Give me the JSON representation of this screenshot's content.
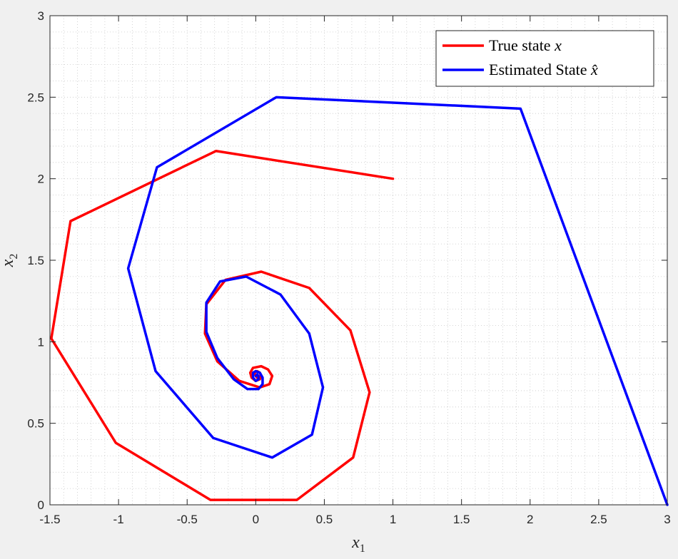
{
  "chart_data": {
    "type": "line",
    "title": "",
    "xlabel": "x",
    "xlabel_sub": "1",
    "ylabel": "x",
    "ylabel_sub": "2",
    "xlim": [
      -1.5,
      3
    ],
    "ylim": [
      0,
      3
    ],
    "xticks": [
      -1.5,
      -1,
      -0.5,
      0,
      0.5,
      1,
      1.5,
      2,
      2.5,
      3
    ],
    "xtick_labels": [
      "-1.5",
      "-1",
      "-0.5",
      "0",
      "0.5",
      "1",
      "1.5",
      "2",
      "2.5",
      "3"
    ],
    "yticks": [
      0,
      0.5,
      1,
      1.5,
      2,
      2.5,
      3
    ],
    "ytick_labels": [
      "0",
      "0.5",
      "1",
      "1.5",
      "2",
      "2.5",
      "3"
    ],
    "grid": "minor-dotted",
    "legend_location": "top-right",
    "series": [
      {
        "name": "True state",
        "name_math": "x",
        "color": "#ff0000",
        "points": [
          [
            1,
            2
          ],
          [
            -0.29,
            2.17
          ],
          [
            -1.35,
            1.74
          ],
          [
            -1.49,
            1.02
          ],
          [
            -1.02,
            0.38
          ],
          [
            -0.33,
            0.03
          ],
          [
            0.3,
            0.03
          ],
          [
            0.71,
            0.29
          ],
          [
            0.83,
            0.69
          ],
          [
            0.69,
            1.07
          ],
          [
            0.39,
            1.33
          ],
          [
            0.04,
            1.43
          ],
          [
            -0.22,
            1.38
          ],
          [
            -0.36,
            1.23
          ],
          [
            -0.37,
            1.05
          ],
          [
            -0.28,
            0.88
          ],
          [
            -0.12,
            0.76
          ],
          [
            0.03,
            0.72
          ],
          [
            0.1,
            0.74
          ],
          [
            0.12,
            0.79
          ],
          [
            0.09,
            0.83
          ],
          [
            0.04,
            0.85
          ],
          [
            -0.02,
            0.84
          ],
          [
            -0.04,
            0.81
          ],
          [
            -0.03,
            0.78
          ],
          [
            0,
            0.76
          ],
          [
            0.03,
            0.77
          ],
          [
            0.04,
            0.79
          ],
          [
            0.03,
            0.81
          ],
          [
            0.01,
            0.82
          ],
          [
            -0.01,
            0.81
          ],
          [
            0,
            0.79
          ],
          [
            0.01,
            0.78
          ],
          [
            0.02,
            0.79
          ],
          [
            0.01,
            0.8
          ]
        ]
      },
      {
        "name": "Estimated State",
        "name_math": "x̂",
        "color": "#0000ff",
        "points": [
          [
            3,
            0
          ],
          [
            1.93,
            2.43
          ],
          [
            0.15,
            2.5
          ],
          [
            -0.72,
            2.07
          ],
          [
            -0.93,
            1.45
          ],
          [
            -0.73,
            0.82
          ],
          [
            -0.31,
            0.41
          ],
          [
            0.12,
            0.29
          ],
          [
            0.41,
            0.43
          ],
          [
            0.49,
            0.72
          ],
          [
            0.39,
            1.05
          ],
          [
            0.18,
            1.29
          ],
          [
            -0.07,
            1.4
          ],
          [
            -0.26,
            1.37
          ],
          [
            -0.36,
            1.24
          ],
          [
            -0.36,
            1.06
          ],
          [
            -0.28,
            0.9
          ],
          [
            -0.16,
            0.77
          ],
          [
            -0.06,
            0.71
          ],
          [
            0.02,
            0.71
          ],
          [
            0.05,
            0.74
          ],
          [
            0.05,
            0.78
          ],
          [
            0.03,
            0.81
          ],
          [
            0,
            0.82
          ],
          [
            -0.02,
            0.81
          ],
          [
            -0.02,
            0.78
          ],
          [
            0,
            0.76
          ],
          [
            0.02,
            0.77
          ],
          [
            0.02,
            0.79
          ],
          [
            0.01,
            0.8
          ],
          [
            0,
            0.79
          ]
        ]
      }
    ]
  }
}
